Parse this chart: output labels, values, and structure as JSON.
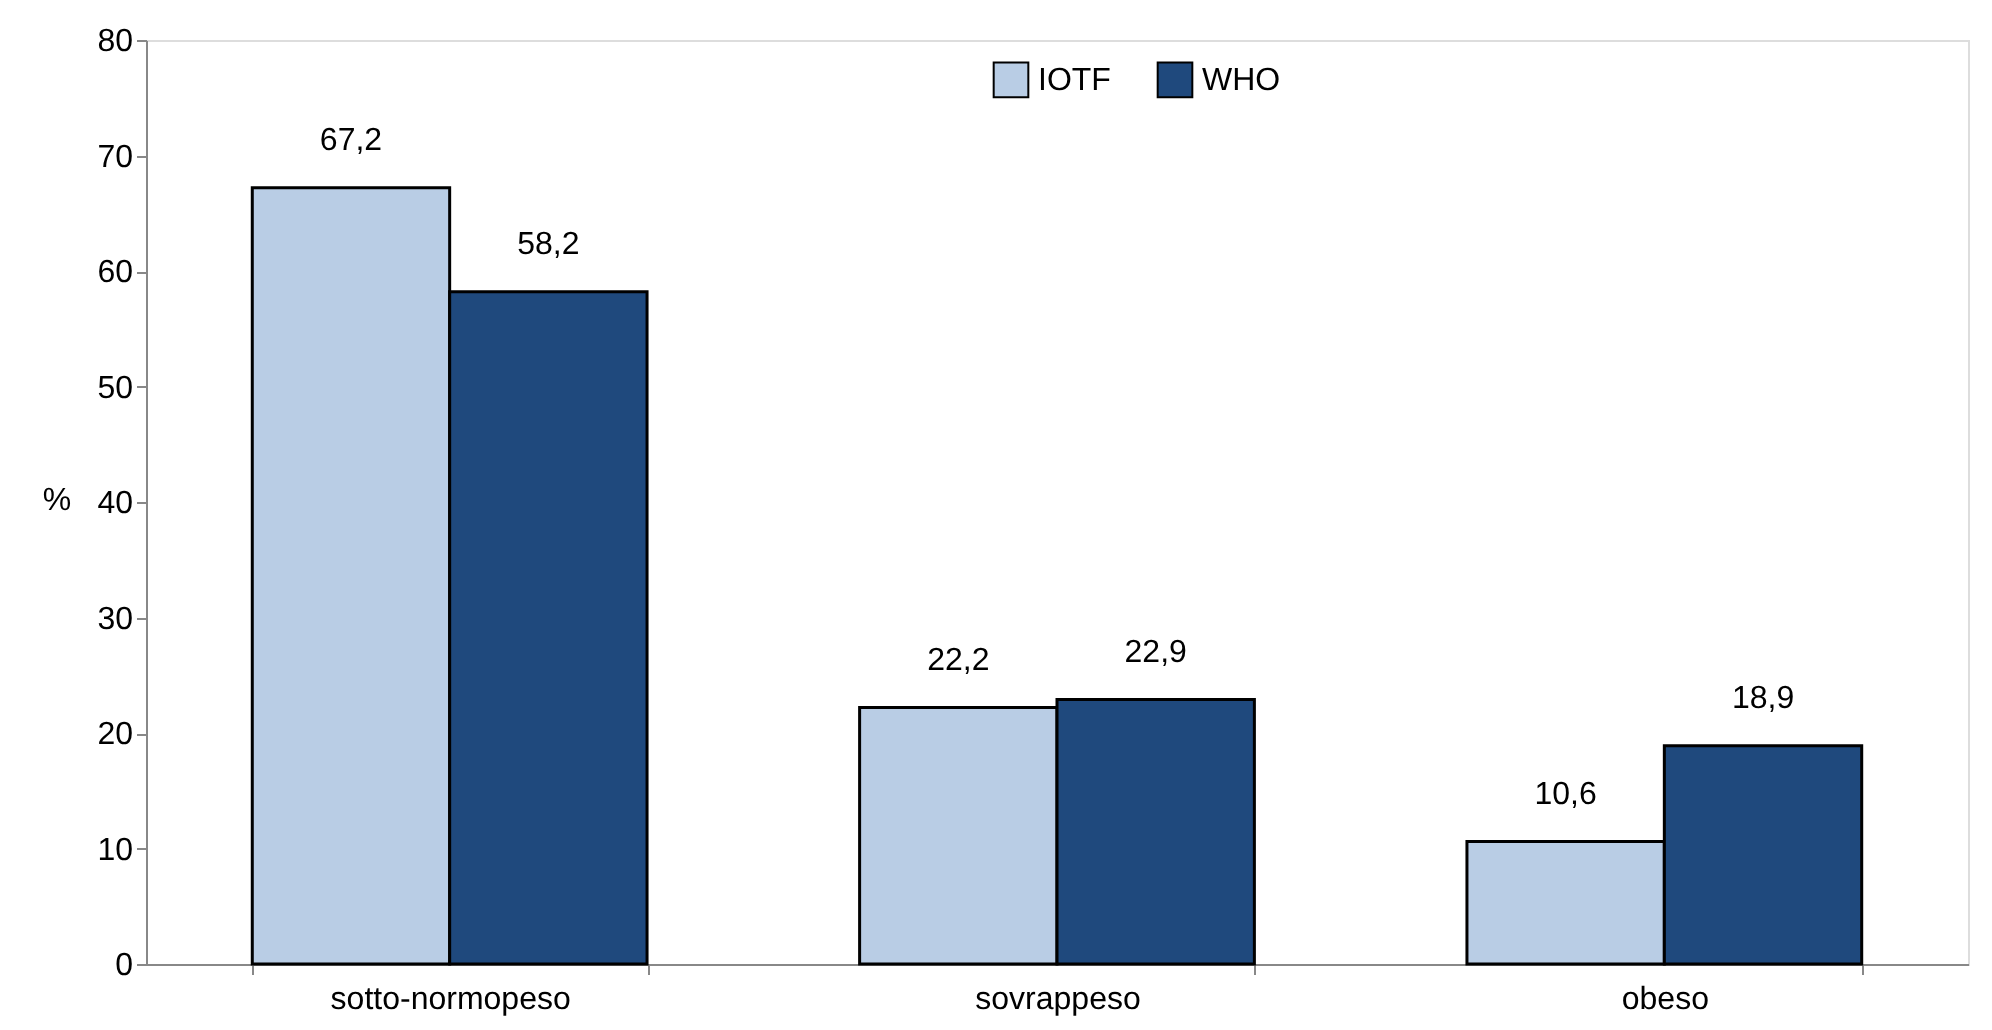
{
  "chart_data": {
    "type": "bar",
    "ylabel": "%",
    "categories": [
      "sotto-normopeso",
      "sovrappeso",
      "obeso"
    ],
    "series": [
      {
        "name": "IOTF",
        "color": "#b9cde5",
        "values": [
          67.2,
          22.2,
          10.6
        ],
        "value_labels": [
          "67,2",
          "22,2",
          "10,6"
        ]
      },
      {
        "name": "WHO",
        "color": "#1f497d",
        "values": [
          58.2,
          22.9,
          18.9
        ],
        "value_labels": [
          "58,2",
          "22,9",
          "18,9"
        ]
      }
    ],
    "ylim": [
      0,
      80
    ],
    "yticks": [
      0,
      10,
      20,
      30,
      40,
      50,
      60,
      70,
      80
    ],
    "grid": false,
    "legend": "top"
  }
}
